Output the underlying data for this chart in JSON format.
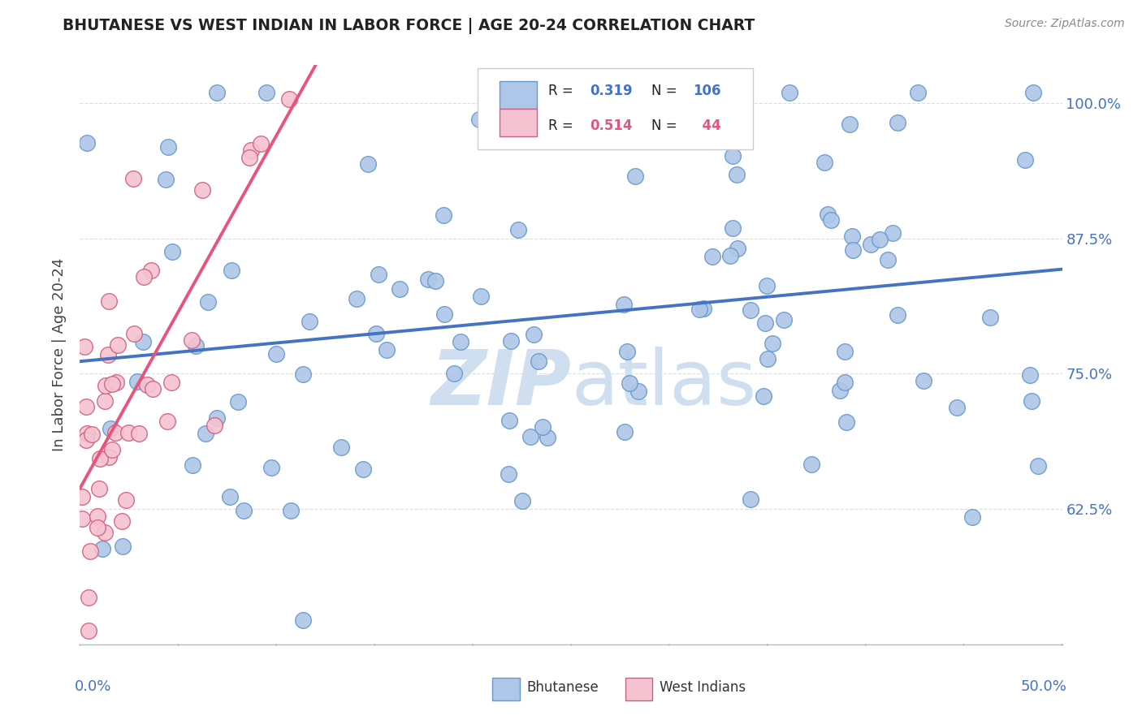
{
  "title": "BHUTANESE VS WEST INDIAN IN LABOR FORCE | AGE 20-24 CORRELATION CHART",
  "source": "Source: ZipAtlas.com",
  "ylabel": "In Labor Force | Age 20-24",
  "yticks": [
    62.5,
    75.0,
    87.5,
    100.0
  ],
  "ytick_labels": [
    "62.5%",
    "75.0%",
    "87.5%",
    "100.0%"
  ],
  "xmin": 0.0,
  "xmax": 50.0,
  "ymin": 50.0,
  "ymax": 103.5,
  "blue_R": 0.319,
  "blue_N": 106,
  "pink_R": 0.514,
  "pink_N": 44,
  "blue_color": "#aec6e8",
  "pink_color": "#f4c2d0",
  "blue_line_color": "#4472c4",
  "pink_line_color": "#e8547a",
  "blue_edge_color": "#6699cc",
  "pink_edge_color": "#d06080",
  "watermark_color": "#d0dff0",
  "legend_blue_label": "Bhutanese",
  "legend_pink_label": "West Indians",
  "background_color": "#ffffff",
  "grid_color": "#dddddd",
  "title_color": "#222222",
  "ylabel_color": "#444444",
  "tick_color": "#4472c4"
}
